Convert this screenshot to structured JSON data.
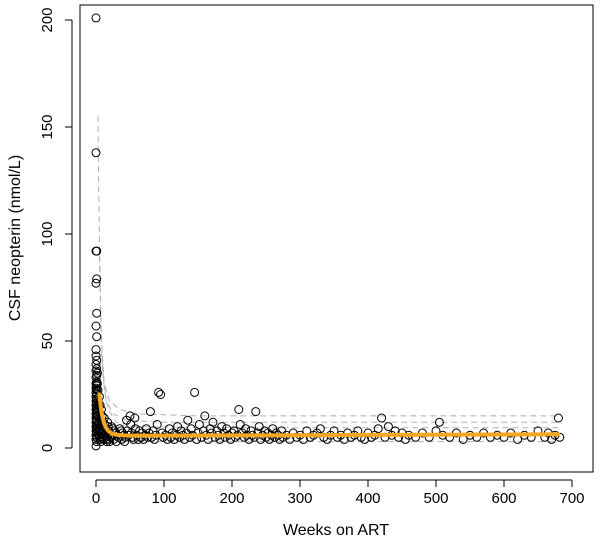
{
  "chart_data": {
    "type": "scatter",
    "title": "",
    "xlabel": "Weeks on ART",
    "ylabel": "CSF neopterin (nmol/L)",
    "xlim": [
      0,
      700
    ],
    "ylim": [
      0,
      200
    ],
    "x_ticks": [
      0,
      100,
      200,
      300,
      400,
      500,
      600,
      700
    ],
    "y_ticks": [
      0,
      50,
      100,
      150,
      200
    ],
    "grid": false,
    "legend": "none",
    "colors": {
      "points": "#000000",
      "fit": "#f5a623",
      "envelope": "#b0b0b0"
    },
    "points": [
      [
        0,
        201
      ],
      [
        0,
        138
      ],
      [
        0,
        92
      ],
      [
        1,
        92
      ],
      [
        1,
        79
      ],
      [
        0,
        77
      ],
      [
        1,
        63
      ],
      [
        0,
        57
      ],
      [
        1,
        52
      ],
      [
        0,
        46
      ],
      [
        0,
        43
      ],
      [
        1,
        41
      ],
      [
        0,
        39
      ],
      [
        1,
        37
      ],
      [
        0,
        36
      ],
      [
        1,
        34
      ],
      [
        0,
        33
      ],
      [
        1,
        31
      ],
      [
        0,
        30
      ],
      [
        1,
        29
      ],
      [
        0,
        28
      ],
      [
        1,
        27
      ],
      [
        0,
        26
      ],
      [
        1,
        25
      ],
      [
        0,
        24
      ],
      [
        1,
        23
      ],
      [
        0,
        22
      ],
      [
        1,
        21
      ],
      [
        0,
        20
      ],
      [
        1,
        19
      ],
      [
        0,
        18
      ],
      [
        1,
        17
      ],
      [
        0,
        16
      ],
      [
        1,
        15
      ],
      [
        0,
        14
      ],
      [
        1,
        13
      ],
      [
        0,
        12
      ],
      [
        1,
        11
      ],
      [
        0,
        10
      ],
      [
        1,
        9
      ],
      [
        0,
        8
      ],
      [
        1,
        7
      ],
      [
        0,
        6
      ],
      [
        1,
        5
      ],
      [
        0,
        4
      ],
      [
        1,
        3
      ],
      [
        0,
        1
      ],
      [
        2,
        35
      ],
      [
        2,
        30
      ],
      [
        3,
        27
      ],
      [
        3,
        22
      ],
      [
        4,
        20
      ],
      [
        2,
        18
      ],
      [
        3,
        15
      ],
      [
        4,
        12
      ],
      [
        2,
        10
      ],
      [
        3,
        8
      ],
      [
        4,
        6
      ],
      [
        5,
        5
      ],
      [
        5,
        24
      ],
      [
        6,
        20
      ],
      [
        6,
        16
      ],
      [
        7,
        13
      ],
      [
        5,
        11
      ],
      [
        6,
        9
      ],
      [
        7,
        7
      ],
      [
        8,
        5
      ],
      [
        6,
        4
      ],
      [
        7,
        3
      ],
      [
        8,
        18
      ],
      [
        9,
        15
      ],
      [
        10,
        12
      ],
      [
        9,
        10
      ],
      [
        10,
        8
      ],
      [
        11,
        7
      ],
      [
        12,
        6
      ],
      [
        10,
        5
      ],
      [
        11,
        4
      ],
      [
        12,
        14
      ],
      [
        13,
        11
      ],
      [
        14,
        9
      ],
      [
        15,
        8
      ],
      [
        13,
        6
      ],
      [
        14,
        5
      ],
      [
        15,
        4
      ],
      [
        16,
        3
      ],
      [
        17,
        12
      ],
      [
        18,
        10
      ],
      [
        19,
        8
      ],
      [
        20,
        7
      ],
      [
        21,
        6
      ],
      [
        22,
        5
      ],
      [
        18,
        4
      ],
      [
        20,
        3
      ],
      [
        23,
        10
      ],
      [
        25,
        9
      ],
      [
        27,
        8
      ],
      [
        29,
        7
      ],
      [
        31,
        6
      ],
      [
        33,
        5
      ],
      [
        26,
        4
      ],
      [
        30,
        3
      ],
      [
        35,
        9
      ],
      [
        37,
        8
      ],
      [
        39,
        7
      ],
      [
        41,
        6
      ],
      [
        43,
        5
      ],
      [
        38,
        4
      ],
      [
        42,
        3
      ],
      [
        45,
        13
      ],
      [
        46,
        8
      ],
      [
        48,
        6
      ],
      [
        50,
        15
      ],
      [
        51,
        11
      ],
      [
        52,
        7
      ],
      [
        54,
        5
      ],
      [
        55,
        4
      ],
      [
        57,
        14
      ],
      [
        58,
        9
      ],
      [
        60,
        6
      ],
      [
        62,
        4
      ],
      [
        64,
        8
      ],
      [
        66,
        5
      ],
      [
        68,
        7
      ],
      [
        70,
        4
      ],
      [
        72,
        6
      ],
      [
        74,
        9
      ],
      [
        76,
        5
      ],
      [
        78,
        7
      ],
      [
        80,
        17
      ],
      [
        82,
        5
      ],
      [
        84,
        8
      ],
      [
        86,
        4
      ],
      [
        88,
        6
      ],
      [
        90,
        11
      ],
      [
        92,
        26
      ],
      [
        95,
        25
      ],
      [
        97,
        7
      ],
      [
        99,
        5
      ],
      [
        102,
        6
      ],
      [
        105,
        4
      ],
      [
        108,
        9
      ],
      [
        110,
        5
      ],
      [
        112,
        7
      ],
      [
        115,
        4
      ],
      [
        118,
        6
      ],
      [
        120,
        10
      ],
      [
        123,
        5
      ],
      [
        125,
        8
      ],
      [
        128,
        6
      ],
      [
        130,
        4
      ],
      [
        133,
        7
      ],
      [
        135,
        13
      ],
      [
        138,
        5
      ],
      [
        140,
        9
      ],
      [
        142,
        6
      ],
      [
        145,
        26
      ],
      [
        148,
        4
      ],
      [
        150,
        7
      ],
      [
        152,
        11
      ],
      [
        155,
        5
      ],
      [
        158,
        8
      ],
      [
        160,
        15
      ],
      [
        162,
        6
      ],
      [
        165,
        4
      ],
      [
        168,
        9
      ],
      [
        170,
        7
      ],
      [
        172,
        12
      ],
      [
        175,
        5
      ],
      [
        178,
        8
      ],
      [
        180,
        6
      ],
      [
        182,
        4
      ],
      [
        185,
        10
      ],
      [
        188,
        7
      ],
      [
        190,
        5
      ],
      [
        192,
        9
      ],
      [
        195,
        6
      ],
      [
        198,
        4
      ],
      [
        200,
        7
      ],
      [
        203,
        8
      ],
      [
        205,
        5
      ],
      [
        208,
        6
      ],
      [
        210,
        18
      ],
      [
        212,
        11
      ],
      [
        215,
        7
      ],
      [
        218,
        5
      ],
      [
        220,
        9
      ],
      [
        222,
        6
      ],
      [
        225,
        4
      ],
      [
        228,
        8
      ],
      [
        230,
        6
      ],
      [
        233,
        5
      ],
      [
        235,
        17
      ],
      [
        238,
        7
      ],
      [
        240,
        10
      ],
      [
        242,
        4
      ],
      [
        245,
        6
      ],
      [
        248,
        8
      ],
      [
        250,
        5
      ],
      [
        253,
        7
      ],
      [
        255,
        4
      ],
      [
        258,
        6
      ],
      [
        260,
        9
      ],
      [
        263,
        5
      ],
      [
        265,
        7
      ],
      [
        268,
        6
      ],
      [
        270,
        4
      ],
      [
        273,
        8
      ],
      [
        275,
        5
      ],
      [
        280,
        6
      ],
      [
        285,
        4
      ],
      [
        290,
        7
      ],
      [
        295,
        5
      ],
      [
        300,
        6
      ],
      [
        305,
        4
      ],
      [
        310,
        8
      ],
      [
        315,
        5
      ],
      [
        320,
        6
      ],
      [
        325,
        7
      ],
      [
        330,
        9
      ],
      [
        335,
        5
      ],
      [
        340,
        4
      ],
      [
        345,
        6
      ],
      [
        350,
        8
      ],
      [
        355,
        5
      ],
      [
        360,
        6
      ],
      [
        365,
        4
      ],
      [
        370,
        7
      ],
      [
        375,
        5
      ],
      [
        380,
        6
      ],
      [
        385,
        8
      ],
      [
        390,
        5
      ],
      [
        395,
        4
      ],
      [
        400,
        7
      ],
      [
        405,
        5
      ],
      [
        410,
        6
      ],
      [
        415,
        9
      ],
      [
        420,
        14
      ],
      [
        425,
        5
      ],
      [
        430,
        10
      ],
      [
        435,
        6
      ],
      [
        440,
        8
      ],
      [
        445,
        5
      ],
      [
        450,
        7
      ],
      [
        455,
        4
      ],
      [
        460,
        6
      ],
      [
        470,
        5
      ],
      [
        480,
        7
      ],
      [
        490,
        5
      ],
      [
        500,
        8
      ],
      [
        505,
        12
      ],
      [
        510,
        6
      ],
      [
        520,
        5
      ],
      [
        530,
        7
      ],
      [
        540,
        4
      ],
      [
        550,
        6
      ],
      [
        560,
        5
      ],
      [
        570,
        7
      ],
      [
        580,
        5
      ],
      [
        590,
        6
      ],
      [
        600,
        5
      ],
      [
        610,
        7
      ],
      [
        620,
        4
      ],
      [
        630,
        6
      ],
      [
        640,
        5
      ],
      [
        650,
        8
      ],
      [
        660,
        5
      ],
      [
        665,
        7
      ],
      [
        670,
        4
      ],
      [
        675,
        6
      ],
      [
        680,
        14
      ],
      [
        682,
        5
      ]
    ],
    "fit_curve": [
      [
        5,
        25.0
      ],
      [
        6,
        22.0
      ],
      [
        7,
        19.4
      ],
      [
        8,
        17.2
      ],
      [
        9,
        15.4
      ],
      [
        10,
        13.9
      ],
      [
        12,
        11.6
      ],
      [
        14,
        10.0
      ],
      [
        16,
        8.9
      ],
      [
        18,
        8.1
      ],
      [
        20,
        7.5
      ],
      [
        25,
        6.6
      ],
      [
        30,
        6.2
      ],
      [
        40,
        5.9
      ],
      [
        50,
        5.8
      ],
      [
        100,
        5.8
      ],
      [
        200,
        5.9
      ],
      [
        300,
        6.0
      ],
      [
        400,
        6.1
      ],
      [
        500,
        6.2
      ],
      [
        600,
        6.3
      ],
      [
        680,
        6.4
      ]
    ],
    "envelope_curves": [
      {
        "points": [
          [
            3,
            155
          ],
          [
            4,
            120
          ],
          [
            6,
            80
          ],
          [
            8,
            50
          ],
          [
            12,
            30
          ],
          [
            20,
            22
          ],
          [
            35,
            18
          ],
          [
            60,
            16
          ],
          [
            150,
            15
          ],
          [
            300,
            15
          ],
          [
            500,
            15
          ],
          [
            680,
            15
          ]
        ]
      },
      {
        "points": [
          [
            5,
            90
          ],
          [
            7,
            60
          ],
          [
            10,
            35
          ],
          [
            15,
            22
          ],
          [
            25,
            16
          ],
          [
            45,
            13
          ],
          [
            100,
            12
          ],
          [
            300,
            12
          ],
          [
            500,
            12
          ],
          [
            680,
            12
          ]
        ]
      },
      {
        "points": [
          [
            8,
            45
          ],
          [
            12,
            28
          ],
          [
            18,
            18
          ],
          [
            30,
            12
          ],
          [
            60,
            10
          ],
          [
            200,
            9.5
          ],
          [
            400,
            9.5
          ],
          [
            680,
            9.5
          ]
        ]
      },
      {
        "points": [
          [
            5,
            6
          ],
          [
            10,
            4.5
          ],
          [
            20,
            3.5
          ],
          [
            50,
            3
          ],
          [
            200,
            3
          ],
          [
            680,
            3
          ]
        ]
      }
    ]
  }
}
